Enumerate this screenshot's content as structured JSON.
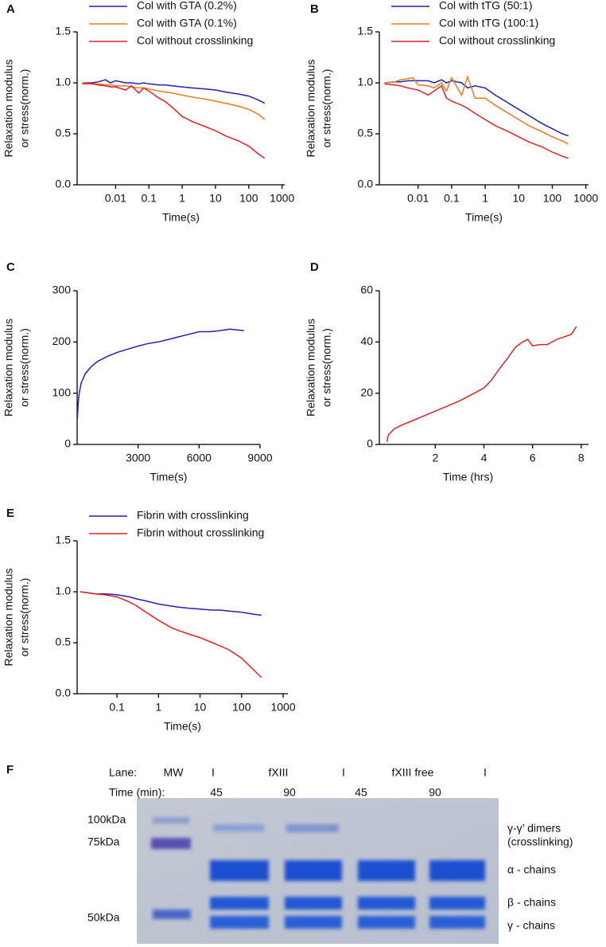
{
  "chart_data": [
    {
      "type": "line",
      "panel_label": "A",
      "x_label": "Time(s)",
      "y_label": [
        "Relaxation modulus",
        "or stress(norm.)"
      ],
      "xscale": "log",
      "xlim": [
        0.0007,
        1200
      ],
      "ylim": [
        0,
        1.5
      ],
      "xticks": [
        0.01,
        0.1,
        1,
        10,
        100,
        1000
      ],
      "yticks": [
        {
          "value": 0,
          "label": "0.0"
        },
        0.5,
        {
          "value": 1,
          "label": "1.0"
        },
        1.5
      ],
      "series": [
        {
          "name": "Col with GTA (0.2%)",
          "color": "#2222b0",
          "x": [
            0.001,
            0.002,
            0.003,
            0.005,
            0.007,
            0.01,
            0.02,
            0.03,
            0.05,
            0.07,
            0.1,
            0.2,
            0.3,
            0.5,
            1,
            2,
            5,
            10,
            20,
            50,
            100,
            200,
            300
          ],
          "values": [
            1.0,
            1.0,
            1.01,
            1.03,
            1.0,
            1.02,
            1.0,
            1.0,
            0.99,
            1.0,
            0.99,
            0.98,
            0.98,
            0.97,
            0.96,
            0.95,
            0.94,
            0.93,
            0.91,
            0.89,
            0.87,
            0.83,
            0.8
          ]
        },
        {
          "name": "Col with GTA (0.1%)",
          "color": "#f07820",
          "x": [
            0.001,
            0.002,
            0.003,
            0.005,
            0.007,
            0.01,
            0.02,
            0.03,
            0.05,
            0.07,
            0.1,
            0.2,
            0.3,
            0.5,
            1,
            2,
            5,
            10,
            20,
            50,
            100,
            200,
            300
          ],
          "values": [
            1.0,
            0.99,
            0.99,
            0.98,
            0.98,
            0.97,
            0.97,
            0.96,
            0.95,
            0.95,
            0.94,
            0.92,
            0.91,
            0.9,
            0.88,
            0.86,
            0.84,
            0.82,
            0.8,
            0.77,
            0.74,
            0.69,
            0.64
          ]
        },
        {
          "name": "Col without crosslinking",
          "color": "#e82020",
          "x": [
            0.001,
            0.002,
            0.003,
            0.005,
            0.007,
            0.01,
            0.02,
            0.03,
            0.05,
            0.07,
            0.1,
            0.2,
            0.3,
            0.5,
            1,
            2,
            5,
            10,
            20,
            50,
            100,
            200,
            300
          ],
          "values": [
            0.99,
            0.99,
            0.98,
            0.97,
            0.96,
            0.96,
            0.93,
            0.97,
            0.9,
            0.95,
            0.92,
            0.85,
            0.82,
            0.76,
            0.67,
            0.62,
            0.57,
            0.53,
            0.48,
            0.43,
            0.38,
            0.3,
            0.26
          ]
        }
      ]
    },
    {
      "type": "line",
      "panel_label": "B",
      "x_label": "Time(s)",
      "y_label": [
        "Relaxation modulus",
        "or stress(norm.)"
      ],
      "xscale": "log",
      "xlim": [
        0.0007,
        1200
      ],
      "ylim": [
        0,
        1.5
      ],
      "xticks": [
        0.01,
        0.1,
        1,
        10,
        100,
        1000
      ],
      "yticks": [
        {
          "value": 0,
          "label": "0.0"
        },
        0.5,
        {
          "value": 1,
          "label": "1.0"
        },
        1.5
      ],
      "series": [
        {
          "name": "Col with tTG (50:1)",
          "color": "#2222b0",
          "x": [
            0.001,
            0.002,
            0.003,
            0.005,
            0.007,
            0.01,
            0.02,
            0.03,
            0.05,
            0.07,
            0.1,
            0.2,
            0.3,
            0.5,
            1,
            2,
            5,
            10,
            20,
            50,
            100,
            200,
            300
          ],
          "values": [
            1.0,
            1.01,
            1.01,
            1.02,
            1.02,
            1.02,
            1.02,
            1.0,
            1.03,
            1.0,
            1.02,
            1.0,
            0.95,
            0.97,
            0.95,
            0.88,
            0.8,
            0.74,
            0.68,
            0.6,
            0.55,
            0.5,
            0.48
          ]
        },
        {
          "name": "Col with tTG (100:1)",
          "color": "#f07820",
          "x": [
            0.001,
            0.002,
            0.003,
            0.005,
            0.007,
            0.01,
            0.02,
            0.03,
            0.05,
            0.07,
            0.1,
            0.2,
            0.3,
            0.5,
            1,
            2,
            5,
            10,
            20,
            50,
            100,
            200,
            300
          ],
          "values": [
            1.0,
            1.01,
            1.03,
            1.04,
            1.05,
            0.98,
            0.97,
            0.95,
            1.0,
            0.92,
            1.05,
            0.88,
            1.06,
            0.85,
            0.85,
            0.78,
            0.7,
            0.64,
            0.58,
            0.52,
            0.47,
            0.43,
            0.4
          ]
        },
        {
          "name": "Col without crosslinking",
          "color": "#e82020",
          "x": [
            0.001,
            0.002,
            0.003,
            0.005,
            0.007,
            0.01,
            0.02,
            0.03,
            0.05,
            0.07,
            0.1,
            0.2,
            0.3,
            0.5,
            1,
            2,
            5,
            10,
            20,
            50,
            100,
            200,
            300
          ],
          "values": [
            0.99,
            0.98,
            0.97,
            0.95,
            0.94,
            0.93,
            0.88,
            0.92,
            0.97,
            0.85,
            0.82,
            0.78,
            0.75,
            0.7,
            0.64,
            0.58,
            0.52,
            0.47,
            0.42,
            0.37,
            0.32,
            0.28,
            0.26
          ]
        }
      ]
    },
    {
      "type": "line",
      "panel_label": "C",
      "x_label": "Time(s)",
      "y_label": [
        "Relaxation modulus",
        "or stress(norm.)"
      ],
      "xscale": "linear",
      "xlim": [
        0,
        9000
      ],
      "ylim": [
        0,
        300
      ],
      "xticks": [
        3000,
        6000,
        9000
      ],
      "yticks": [
        0,
        100,
        200,
        300
      ],
      "series": [
        {
          "color": "#2222b0",
          "x": [
            10,
            50,
            100,
            200,
            400,
            700,
            1000,
            1500,
            2000,
            2500,
            3000,
            3500,
            4000,
            4500,
            5000,
            5500,
            6000,
            6500,
            7000,
            7500,
            8000,
            8200
          ],
          "values": [
            50,
            80,
            100,
            120,
            138,
            152,
            162,
            172,
            180,
            186,
            192,
            197,
            200,
            205,
            210,
            215,
            220,
            220,
            222,
            225,
            223,
            222
          ]
        }
      ]
    },
    {
      "type": "line",
      "panel_label": "D",
      "x_label": "Time (hrs)",
      "y_label": [
        "Relaxation modulus",
        "or stress(norm.)"
      ],
      "xscale": "linear",
      "xlim": [
        -0.3,
        8.3
      ],
      "ylim": [
        0,
        60
      ],
      "xticks": [
        2,
        4,
        6,
        8
      ],
      "yticks": [
        0,
        20,
        40,
        60
      ],
      "series": [
        {
          "color": "#e82020",
          "x": [
            0.02,
            0.05,
            0.1,
            0.3,
            0.6,
            1,
            1.5,
            2,
            2.5,
            3,
            3.5,
            4,
            4.3,
            4.6,
            5,
            5.3,
            5.6,
            5.8,
            6,
            6.3,
            6.6,
            7,
            7.3,
            7.6,
            7.8
          ],
          "values": [
            1,
            3,
            4,
            6,
            7.5,
            9,
            11,
            13,
            15,
            17,
            19.5,
            22,
            25,
            29,
            34,
            38,
            40,
            41,
            38.5,
            39,
            39,
            41,
            42,
            43,
            46
          ]
        }
      ]
    },
    {
      "type": "line",
      "panel_label": "E",
      "x_label": "Time(s)",
      "y_label": [
        "Relaxation modulus",
        "or stress(norm.)"
      ],
      "xscale": "log",
      "xlim": [
        0.011,
        1300
      ],
      "ylim": [
        0,
        1.5
      ],
      "xticks": [
        0.1,
        1,
        10,
        100,
        1000
      ],
      "yticks": [
        {
          "value": 0,
          "label": "0.0"
        },
        0.5,
        {
          "value": 1,
          "label": "1.0"
        },
        1.5
      ],
      "series": [
        {
          "name": "Fibrin with crosslinking",
          "color": "#2222b0",
          "x": [
            0.013,
            0.02,
            0.03,
            0.05,
            0.1,
            0.2,
            0.3,
            0.5,
            1,
            2,
            3,
            5,
            10,
            20,
            30,
            50,
            100,
            200,
            300
          ],
          "values": [
            1.0,
            0.99,
            0.98,
            0.98,
            0.97,
            0.95,
            0.93,
            0.91,
            0.88,
            0.86,
            0.85,
            0.84,
            0.83,
            0.82,
            0.82,
            0.81,
            0.8,
            0.78,
            0.77
          ]
        },
        {
          "name": "Fibrin without crosslinking",
          "color": "#e82020",
          "x": [
            0.013,
            0.02,
            0.03,
            0.05,
            0.1,
            0.2,
            0.3,
            0.5,
            1,
            2,
            3,
            5,
            10,
            20,
            30,
            50,
            100,
            200,
            300
          ],
          "values": [
            1.0,
            0.99,
            0.98,
            0.97,
            0.95,
            0.9,
            0.86,
            0.8,
            0.72,
            0.65,
            0.62,
            0.59,
            0.55,
            0.5,
            0.47,
            0.43,
            0.35,
            0.23,
            0.16
          ]
        }
      ]
    }
  ],
  "gel": {
    "panel_label": "F",
    "lane_row": [
      "Lane:",
      "MW",
      "I",
      "fXIII",
      "I",
      "fXIII free",
      "I"
    ],
    "time_row": [
      "Time (min):",
      "45",
      "90",
      "45",
      "90"
    ],
    "markers": [
      "100kDa",
      "75kDa",
      "50kDa"
    ],
    "bands": [
      "γ-γ’ dimers",
      "(crosslinking)",
      "α - chains",
      "β - chains",
      "γ - chains"
    ]
  }
}
